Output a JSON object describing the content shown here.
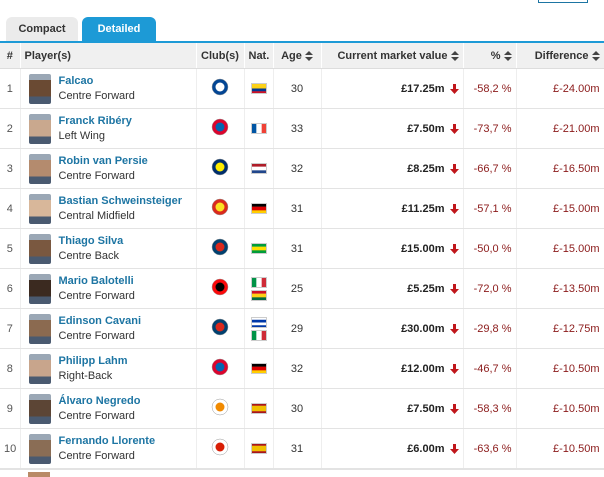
{
  "tabs": [
    "Compact",
    "Detailed"
  ],
  "table": {
    "header": [
      "#",
      "Player(s)",
      "Club(s)",
      "Nat.",
      "Age",
      "Current market value",
      "%",
      "Difference"
    ],
    "rows": [
      {
        "rank": "1",
        "name": "Falcao",
        "position": "Centre Forward",
        "age": "30",
        "value": "£17.25m",
        "pct": "-58,2 %",
        "diff": "£-24.00m"
      },
      {
        "rank": "2",
        "name": "Franck Ribéry",
        "position": "Left Wing",
        "age": "33",
        "value": "£7.50m",
        "pct": "-73,7 %",
        "diff": "£-21.00m"
      },
      {
        "rank": "3",
        "name": "Robin van Persie",
        "position": "Centre Forward",
        "age": "32",
        "value": "£8.25m",
        "pct": "-66,7 %",
        "diff": "£-16.50m"
      },
      {
        "rank": "4",
        "name": "Bastian Schweinsteiger",
        "position": "Central Midfield",
        "age": "31",
        "value": "£11.25m",
        "pct": "-57,1 %",
        "diff": "£-15.00m"
      },
      {
        "rank": "5",
        "name": "Thiago Silva",
        "position": "Centre Back",
        "age": "31",
        "value": "£15.00m",
        "pct": "-50,0 %",
        "diff": "£-15.00m"
      },
      {
        "rank": "6",
        "name": "Mario Balotelli",
        "position": "Centre Forward",
        "age": "25",
        "value": "£5.25m",
        "pct": "-72,0 %",
        "diff": "£-13.50m"
      },
      {
        "rank": "7",
        "name": "Edinson Cavani",
        "position": "Centre Forward",
        "age": "29",
        "value": "£30.00m",
        "pct": "-29,8 %",
        "diff": "£-12.75m"
      },
      {
        "rank": "8",
        "name": "Philipp Lahm",
        "position": "Right-Back",
        "age": "32",
        "value": "£12.00m",
        "pct": "-46,7 %",
        "diff": "£-10.50m"
      },
      {
        "rank": "9",
        "name": "Álvaro Negredo",
        "position": "Centre Forward",
        "age": "30",
        "value": "£7.50m",
        "pct": "-58,3 %",
        "diff": "£-10.50m"
      },
      {
        "rank": "10",
        "name": "Fernando Llorente",
        "position": "Centre Forward",
        "age": "31",
        "value": "£6.00m",
        "pct": "-63,6 %",
        "diff": "£-10.50m"
      }
    ]
  }
}
